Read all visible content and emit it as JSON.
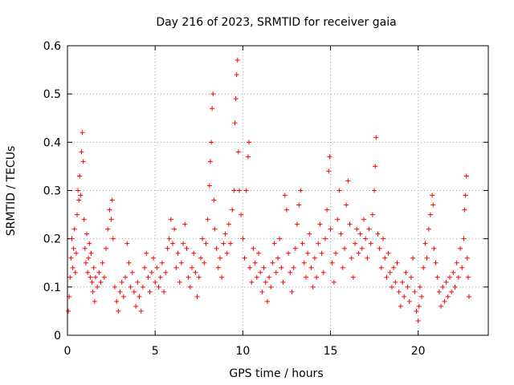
{
  "chart_data": {
    "type": "scatter",
    "title": "Day 216 of 2023, SRMTID for receiver gaia",
    "xlabel": "GPS time / hours",
    "ylabel": "SRMTID / TECUs",
    "xlim": [
      0,
      24
    ],
    "ylim": [
      0,
      0.6
    ],
    "xticks": [
      0,
      5,
      10,
      15,
      20
    ],
    "yticks": [
      0,
      0.1,
      0.2,
      0.3,
      0.4,
      0.5,
      0.6
    ],
    "xtick_labels": [
      "0",
      "5",
      "10",
      "15",
      "20"
    ],
    "ytick_labels": [
      "0",
      "0.1",
      "0.2",
      "0.3",
      "0.4",
      "0.5",
      "0.6"
    ],
    "grid": true,
    "marker": "+",
    "marker_color": "#ff0000",
    "series": [
      {
        "name": "SRMTID",
        "points": [
          [
            0.05,
            0.05
          ],
          [
            0.1,
            0.08
          ],
          [
            0.15,
            0.12
          ],
          [
            0.2,
            0.16
          ],
          [
            0.25,
            0.2
          ],
          [
            0.3,
            0.14
          ],
          [
            0.35,
            0.18
          ],
          [
            0.4,
            0.22
          ],
          [
            0.45,
            0.13
          ],
          [
            0.5,
            0.17
          ],
          [
            0.55,
            0.25
          ],
          [
            0.6,
            0.3
          ],
          [
            0.65,
            0.28
          ],
          [
            0.7,
            0.33
          ],
          [
            0.75,
            0.29
          ],
          [
            0.8,
            0.38
          ],
          [
            0.85,
            0.42
          ],
          [
            0.9,
            0.36
          ],
          [
            0.95,
            0.24
          ],
          [
            1.0,
            0.18
          ],
          [
            1.05,
            0.15
          ],
          [
            1.1,
            0.21
          ],
          [
            1.15,
            0.13
          ],
          [
            1.2,
            0.16
          ],
          [
            1.25,
            0.19
          ],
          [
            1.3,
            0.12
          ],
          [
            1.35,
            0.17
          ],
          [
            1.4,
            0.11
          ],
          [
            1.45,
            0.09
          ],
          [
            1.5,
            0.14
          ],
          [
            1.55,
            0.07
          ],
          [
            1.6,
            0.12
          ],
          [
            1.7,
            0.1
          ],
          [
            1.8,
            0.13
          ],
          [
            1.9,
            0.11
          ],
          [
            2.0,
            0.15
          ],
          [
            2.1,
            0.12
          ],
          [
            2.2,
            0.18
          ],
          [
            2.3,
            0.22
          ],
          [
            2.4,
            0.26
          ],
          [
            2.5,
            0.24
          ],
          [
            2.55,
            0.28
          ],
          [
            2.6,
            0.2
          ],
          [
            2.7,
            0.1
          ],
          [
            2.8,
            0.07
          ],
          [
            2.9,
            0.05
          ],
          [
            3.0,
            0.09
          ],
          [
            3.1,
            0.11
          ],
          [
            3.2,
            0.08
          ],
          [
            3.3,
            0.12
          ],
          [
            3.4,
            0.19
          ],
          [
            3.5,
            0.15
          ],
          [
            3.6,
            0.1
          ],
          [
            3.7,
            0.13
          ],
          [
            3.8,
            0.09
          ],
          [
            3.9,
            0.06
          ],
          [
            4.0,
            0.11
          ],
          [
            4.1,
            0.08
          ],
          [
            4.2,
            0.05
          ],
          [
            4.3,
            0.1
          ],
          [
            4.4,
            0.14
          ],
          [
            4.5,
            0.17
          ],
          [
            4.6,
            0.12
          ],
          [
            4.7,
            0.09
          ],
          [
            4.8,
            0.13
          ],
          [
            4.9,
            0.16
          ],
          [
            5.0,
            0.11
          ],
          [
            5.1,
            0.14
          ],
          [
            5.2,
            0.1
          ],
          [
            5.3,
            0.12
          ],
          [
            5.4,
            0.15
          ],
          [
            5.5,
            0.09
          ],
          [
            5.6,
            0.13
          ],
          [
            5.7,
            0.18
          ],
          [
            5.8,
            0.2
          ],
          [
            5.9,
            0.24
          ],
          [
            6.0,
            0.19
          ],
          [
            6.1,
            0.22
          ],
          [
            6.2,
            0.14
          ],
          [
            6.3,
            0.17
          ],
          [
            6.4,
            0.11
          ],
          [
            6.5,
            0.15
          ],
          [
            6.6,
            0.19
          ],
          [
            6.7,
            0.23
          ],
          [
            6.8,
            0.18
          ],
          [
            6.9,
            0.12
          ],
          [
            7.0,
            0.1
          ],
          [
            7.1,
            0.14
          ],
          [
            7.2,
            0.17
          ],
          [
            7.3,
            0.13
          ],
          [
            7.4,
            0.08
          ],
          [
            7.5,
            0.12
          ],
          [
            7.6,
            0.16
          ],
          [
            7.7,
            0.2
          ],
          [
            7.8,
            0.15
          ],
          [
            7.9,
            0.19
          ],
          [
            8.0,
            0.24
          ],
          [
            8.1,
            0.31
          ],
          [
            8.15,
            0.36
          ],
          [
            8.2,
            0.4
          ],
          [
            8.25,
            0.47
          ],
          [
            8.3,
            0.5
          ],
          [
            8.35,
            0.28
          ],
          [
            8.4,
            0.22
          ],
          [
            8.5,
            0.18
          ],
          [
            8.6,
            0.14
          ],
          [
            8.7,
            0.16
          ],
          [
            8.8,
            0.12
          ],
          [
            8.9,
            0.19
          ],
          [
            9.0,
            0.21
          ],
          [
            9.1,
            0.17
          ],
          [
            9.2,
            0.23
          ],
          [
            9.3,
            0.19
          ],
          [
            9.4,
            0.26
          ],
          [
            9.5,
            0.3
          ],
          [
            9.55,
            0.44
          ],
          [
            9.6,
            0.49
          ],
          [
            9.65,
            0.54
          ],
          [
            9.7,
            0.57
          ],
          [
            9.75,
            0.38
          ],
          [
            9.8,
            0.3
          ],
          [
            9.9,
            0.25
          ],
          [
            10.0,
            0.2
          ],
          [
            10.1,
            0.16
          ],
          [
            10.2,
            0.3
          ],
          [
            10.3,
            0.37
          ],
          [
            10.35,
            0.4
          ],
          [
            10.4,
            0.14
          ],
          [
            10.5,
            0.11
          ],
          [
            10.6,
            0.18
          ],
          [
            10.7,
            0.15
          ],
          [
            10.8,
            0.12
          ],
          [
            10.9,
            0.17
          ],
          [
            11.0,
            0.13
          ],
          [
            11.1,
            0.09
          ],
          [
            11.2,
            0.14
          ],
          [
            11.3,
            0.11
          ],
          [
            11.4,
            0.07
          ],
          [
            11.5,
            0.12
          ],
          [
            11.6,
            0.1
          ],
          [
            11.7,
            0.15
          ],
          [
            11.8,
            0.19
          ],
          [
            11.9,
            0.13
          ],
          [
            12.0,
            0.16
          ],
          [
            12.1,
            0.2
          ],
          [
            12.2,
            0.14
          ],
          [
            12.3,
            0.11
          ],
          [
            12.4,
            0.29
          ],
          [
            12.5,
            0.26
          ],
          [
            12.6,
            0.17
          ],
          [
            12.7,
            0.13
          ],
          [
            12.8,
            0.09
          ],
          [
            12.9,
            0.14
          ],
          [
            13.0,
            0.18
          ],
          [
            13.1,
            0.23
          ],
          [
            13.2,
            0.27
          ],
          [
            13.3,
            0.3
          ],
          [
            13.4,
            0.19
          ],
          [
            13.5,
            0.15
          ],
          [
            13.6,
            0.12
          ],
          [
            13.7,
            0.17
          ],
          [
            13.8,
            0.21
          ],
          [
            13.9,
            0.14
          ],
          [
            14.0,
            0.1
          ],
          [
            14.1,
            0.16
          ],
          [
            14.2,
            0.12
          ],
          [
            14.3,
            0.19
          ],
          [
            14.4,
            0.23
          ],
          [
            14.5,
            0.17
          ],
          [
            14.6,
            0.13
          ],
          [
            14.7,
            0.2
          ],
          [
            14.8,
            0.26
          ],
          [
            14.9,
            0.34
          ],
          [
            14.95,
            0.37
          ],
          [
            15.0,
            0.22
          ],
          [
            15.1,
            0.15
          ],
          [
            15.2,
            0.11
          ],
          [
            15.3,
            0.17
          ],
          [
            15.4,
            0.24
          ],
          [
            15.5,
            0.3
          ],
          [
            15.6,
            0.21
          ],
          [
            15.7,
            0.14
          ],
          [
            15.8,
            0.18
          ],
          [
            15.9,
            0.27
          ],
          [
            16.0,
            0.32
          ],
          [
            16.1,
            0.23
          ],
          [
            16.2,
            0.16
          ],
          [
            16.3,
            0.12
          ],
          [
            16.4,
            0.19
          ],
          [
            16.5,
            0.22
          ],
          [
            16.6,
            0.17
          ],
          [
            16.7,
            0.21
          ],
          [
            16.8,
            0.18
          ],
          [
            16.9,
            0.24
          ],
          [
            17.0,
            0.2
          ],
          [
            17.1,
            0.16
          ],
          [
            17.2,
            0.22
          ],
          [
            17.3,
            0.19
          ],
          [
            17.4,
            0.25
          ],
          [
            17.5,
            0.3
          ],
          [
            17.55,
            0.35
          ],
          [
            17.6,
            0.41
          ],
          [
            17.7,
            0.21
          ],
          [
            17.8,
            0.18
          ],
          [
            17.9,
            0.14
          ],
          [
            18.0,
            0.2
          ],
          [
            18.1,
            0.16
          ],
          [
            18.2,
            0.12
          ],
          [
            18.3,
            0.17
          ],
          [
            18.4,
            0.13
          ],
          [
            18.5,
            0.1
          ],
          [
            18.6,
            0.14
          ],
          [
            18.7,
            0.11
          ],
          [
            18.8,
            0.15
          ],
          [
            18.9,
            0.09
          ],
          [
            19.0,
            0.06
          ],
          [
            19.1,
            0.11
          ],
          [
            19.2,
            0.08
          ],
          [
            19.3,
            0.13
          ],
          [
            19.4,
            0.1
          ],
          [
            19.5,
            0.07
          ],
          [
            19.6,
            0.12
          ],
          [
            19.7,
            0.16
          ],
          [
            19.8,
            0.09
          ],
          [
            19.9,
            0.05
          ],
          [
            20.0,
            0.03
          ],
          [
            20.05,
            0.06
          ],
          [
            20.1,
            0.1
          ],
          [
            20.2,
            0.08
          ],
          [
            20.3,
            0.14
          ],
          [
            20.4,
            0.19
          ],
          [
            20.5,
            0.16
          ],
          [
            20.6,
            0.22
          ],
          [
            20.7,
            0.25
          ],
          [
            20.8,
            0.29
          ],
          [
            20.85,
            0.27
          ],
          [
            20.9,
            0.18
          ],
          [
            21.0,
            0.15
          ],
          [
            21.1,
            0.12
          ],
          [
            21.2,
            0.09
          ],
          [
            21.3,
            0.06
          ],
          [
            21.4,
            0.1
          ],
          [
            21.5,
            0.07
          ],
          [
            21.6,
            0.11
          ],
          [
            21.7,
            0.08
          ],
          [
            21.8,
            0.12
          ],
          [
            21.9,
            0.09
          ],
          [
            22.0,
            0.13
          ],
          [
            22.1,
            0.1
          ],
          [
            22.2,
            0.15
          ],
          [
            22.3,
            0.12
          ],
          [
            22.4,
            0.18
          ],
          [
            22.5,
            0.14
          ],
          [
            22.6,
            0.2
          ],
          [
            22.65,
            0.26
          ],
          [
            22.7,
            0.29
          ],
          [
            22.75,
            0.33
          ],
          [
            22.8,
            0.16
          ],
          [
            22.85,
            0.12
          ],
          [
            22.9,
            0.08
          ]
        ]
      }
    ]
  }
}
